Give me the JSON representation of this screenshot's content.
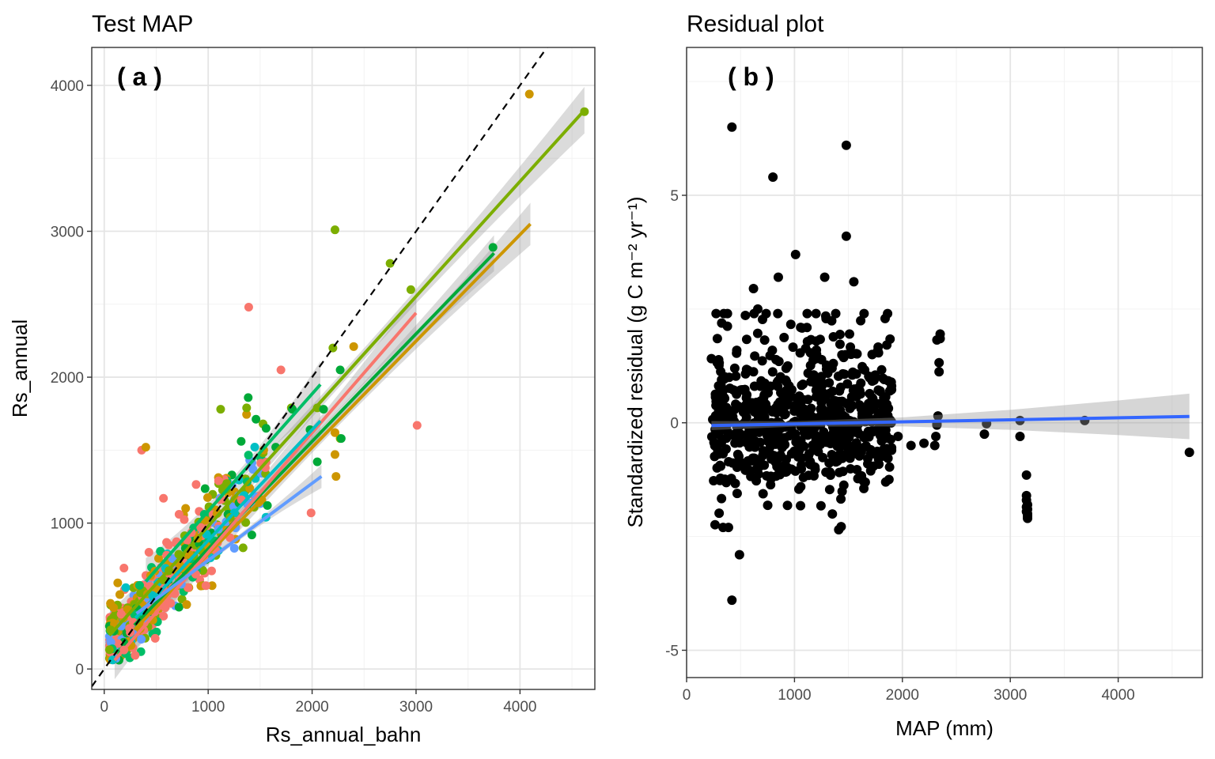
{
  "chart_data": [
    {
      "type": "scatter",
      "title": "Test MAP",
      "panel_label": "( a )",
      "xlabel": "Rs_annual_bahn",
      "ylabel": "Rs_annual",
      "xlim": [
        -120,
        4720
      ],
      "ylim": [
        -140,
        4260
      ],
      "xticks": [
        0,
        1000,
        2000,
        3000,
        4000
      ],
      "yticks": [
        0,
        1000,
        2000,
        3000,
        4000
      ],
      "grid": true,
      "legend": "none",
      "reference_line": {
        "style": "dashed",
        "color": "#000000",
        "x": [
          -120,
          4300
        ],
        "y": [
          -120,
          4300
        ]
      },
      "fits": [
        {
          "color": "#7CAE00",
          "x": [
            50,
            4620
          ],
          "y": [
            230,
            3830
          ],
          "se": 110
        },
        {
          "color": "#CD9600",
          "x": [
            290,
            4100
          ],
          "y": [
            270,
            3050
          ],
          "se": 100
        },
        {
          "color": "#00A938",
          "x": [
            290,
            3750
          ],
          "y": [
            300,
            2850
          ],
          "se": 85
        },
        {
          "color": "#F8766D",
          "x": [
            100,
            3000
          ],
          "y": [
            60,
            2440
          ],
          "se": 90
        },
        {
          "color": "#00BE67",
          "x": [
            400,
            2080
          ],
          "y": [
            600,
            1950
          ],
          "se": 110
        },
        {
          "color": "#00BFC4",
          "x": [
            300,
            2080
          ],
          "y": [
            350,
            1700
          ],
          "se": 85
        },
        {
          "color": "#619CFF",
          "x": [
            310,
            2090
          ],
          "y": [
            380,
            1320
          ],
          "se": 55
        }
      ],
      "series": [
        {
          "name": "",
          "color": "#F8766D",
          "x": [
            1390,
            1700,
            3010,
            1990,
            360,
            570,
            620,
            430,
            720,
            1550,
            1100,
            250,
            190,
            490,
            880,
            1210,
            960,
            1320,
            280,
            660
          ],
          "y": [
            2480,
            2050,
            1670,
            1070,
            1500,
            1170,
            850,
            800,
            1060,
            1380,
            1290,
            250,
            130,
            210,
            650,
            900,
            760,
            1160,
            320,
            560
          ]
        },
        {
          "name": "",
          "color": "#7CAE00",
          "x": [
            2220,
            2750,
            2950,
            4620,
            2200,
            1120,
            1370,
            1800,
            2270,
            2050
          ],
          "y": [
            3010,
            2780,
            2600,
            3820,
            2200,
            1780,
            1790,
            1790,
            1580,
            1790
          ]
        },
        {
          "name": "",
          "color": "#CD9600",
          "x": [
            4090,
            400,
            2400,
            2220,
            2230,
            2220,
            130,
            150,
            90,
            60
          ],
          "y": [
            3940,
            1520,
            2210,
            1620,
            1320,
            1470,
            590,
            510,
            420,
            450
          ]
        },
        {
          "name": "",
          "color": "#00A938",
          "x": [
            2270,
            2280,
            2050,
            3740,
            1980,
            1810,
            2110,
            1650
          ],
          "y": [
            2050,
            1580,
            1420,
            2890,
            1640,
            1780,
            1780,
            1520
          ]
        }
      ],
      "cloud": {
        "x_range": [
          50,
          2100
        ],
        "slope": 0.82,
        "intercept": 120,
        "spread": 150,
        "n": 520
      }
    },
    {
      "type": "scatter",
      "title": "Residual plot",
      "panel_label": "( b )",
      "xlabel": "MAP (mm)",
      "ylabel": "Standardized residual (g C m⁻² yr⁻¹)",
      "xlim": [
        0,
        4780
      ],
      "ylim": [
        -5.6,
        8.25
      ],
      "xticks": [
        0,
        1000,
        2000,
        3000,
        4000
      ],
      "yticks": [
        -5,
        0,
        5
      ],
      "grid": true,
      "legend": "none",
      "point_color": "#000000",
      "fit": {
        "color": "#3366FF",
        "x": [
          230,
          4660
        ],
        "y": [
          -0.06,
          0.14
        ],
        "se_x": [
          230,
          1000,
          2000,
          3000,
          4000,
          4660
        ],
        "se_half": [
          0.1,
          0.06,
          0.1,
          0.22,
          0.38,
          0.5
        ]
      },
      "points": {
        "x": [
          420,
          1480,
          800,
          1480,
          1280,
          1550,
          420,
          490,
          1010,
          1510,
          620,
          660,
          850,
          1720,
          1720,
          1410,
          2320,
          2350,
          2350,
          2340,
          2340,
          2330,
          2320,
          2200,
          2300,
          2780,
          2760,
          3090,
          3090,
          3150,
          3150,
          3150,
          3160,
          3160,
          3160,
          3160,
          3160,
          3150,
          3150,
          3690,
          4660,
          1960,
          1900,
          2080,
          2320,
          2310
        ],
        "y": [
          6.5,
          6.1,
          5.4,
          4.1,
          3.2,
          3.1,
          -3.9,
          -2.9,
          3.7,
          1.95,
          2.95,
          2.5,
          3.2,
          1.5,
          1.5,
          -2.35,
          1.82,
          1.95,
          1.85,
          1.32,
          1.12,
          0.15,
          -0.02,
          -0.45,
          -0.5,
          -0.02,
          -0.25,
          0.05,
          -0.3,
          -1.15,
          -1.6,
          -1.7,
          -1.8,
          -1.9,
          -2.0,
          -2.05,
          -2.1,
          -1.95,
          -1.85,
          0.05,
          -0.65,
          -0.3,
          -0.55,
          -0.5,
          -0.05,
          -0.3
        ]
      },
      "cloud": {
        "x_range": [
          230,
          1900
        ],
        "center": -0.1,
        "spread": 0.75,
        "n": 700
      }
    }
  ]
}
